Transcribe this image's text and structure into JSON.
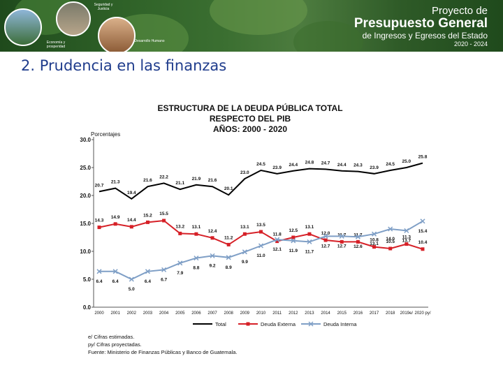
{
  "header": {
    "section_title": "2. Prudencia en las finanzas",
    "logo": {
      "line1": "Proyecto de",
      "line2": "Presupuesto General",
      "line3": "de Ingresos y Egresos del Estado",
      "line4": "2020 - 2024"
    },
    "circles": [
      {
        "label": "Economía y prosperidad"
      },
      {
        "label": "Seguridad y Justicia"
      },
      {
        "label": "Desarrollo Humano"
      }
    ],
    "colors": {
      "banner_green": "#2f6228",
      "heading_blue": "#1f3c8c"
    }
  },
  "chart_data": {
    "type": "line",
    "title": [
      "ESTRUCTURA DE LA DEUDA PÚBLICA TOTAL",
      "RESPECTO DEL PIB",
      "AÑOS: 2000 - 2020"
    ],
    "ylabel": "Porcentajes",
    "ylim": [
      0,
      30
    ],
    "yticks": [
      "0.0",
      "5.0",
      "10.0",
      "15.0",
      "20.0",
      "25.0",
      "30.0"
    ],
    "categories": [
      "2000",
      "2001",
      "2002",
      "2003",
      "2004",
      "2005",
      "2006",
      "2007",
      "2008",
      "2009",
      "2010",
      "2011",
      "2012",
      "2013",
      "2014",
      "2015",
      "2016",
      "2017",
      "2018",
      "2019e/",
      "2020 py/"
    ],
    "series": [
      {
        "name": "Total",
        "color": "#000000",
        "marker": "none",
        "values": [
          20.7,
          21.3,
          19.4,
          21.6,
          22.2,
          21.1,
          21.9,
          21.6,
          20.1,
          23.0,
          24.5,
          23.9,
          24.4,
          24.8,
          24.7,
          24.4,
          24.3,
          23.9,
          24.5,
          25.0,
          25.8
        ],
        "labels": [
          "20.7",
          "21.3",
          "19.4",
          "21.6",
          "22.2",
          "21.1",
          "21.9",
          "21.6",
          "20.1",
          "23.0",
          "24.5",
          "23.9",
          "24.4",
          "24.8",
          "24.7",
          "24.4",
          "24.3",
          "23.9",
          "24.5",
          "25.0",
          "25.8"
        ]
      },
      {
        "name": "Deuda Externa",
        "color": "#d62027",
        "marker": "square",
        "values": [
          14.3,
          14.9,
          14.4,
          15.2,
          15.5,
          13.2,
          13.1,
          12.4,
          11.2,
          13.1,
          13.5,
          11.8,
          12.5,
          13.1,
          12.0,
          11.7,
          11.7,
          10.8,
          10.5,
          11.3,
          10.4
        ],
        "labels": [
          "14.3",
          "14.9",
          "14.4",
          "15.2",
          "15.5",
          "13.2",
          "13.1",
          "12.4",
          "11.2",
          "13.1",
          "13.5",
          "11.8",
          "12.5",
          "13.1",
          "12.0",
          "11.7",
          "11.7",
          "10.8",
          "10.5",
          "11.3",
          "10.4"
        ]
      },
      {
        "name": "Deuda Interna",
        "color": "#7f9fc6",
        "marker": "x",
        "values": [
          6.4,
          6.4,
          5.0,
          6.4,
          6.7,
          7.9,
          8.8,
          9.2,
          8.9,
          9.9,
          11.0,
          12.1,
          11.9,
          11.7,
          12.7,
          12.7,
          12.6,
          13.1,
          14.0,
          13.7,
          15.4
        ],
        "labels": [
          "6.4",
          "6.4",
          "5.0",
          "6.4",
          "6.7",
          "7.9",
          "8.8",
          "9.2",
          "8.9",
          "9.9",
          "11.0",
          "12.1",
          "11.9",
          "11.7",
          "12.7",
          "12.7",
          "12.6",
          "13.1",
          "14.0",
          "13.7",
          "15.4"
        ]
      }
    ],
    "legend": [
      "Total",
      "Deuda Externa",
      "Deuda Interna"
    ],
    "notes": [
      "e/    Cifras estimadas.",
      "py/  Cifras proyectadas.",
      "Fuente: Ministerio de Finanzas Públicas y Banco de Guatemala."
    ]
  }
}
